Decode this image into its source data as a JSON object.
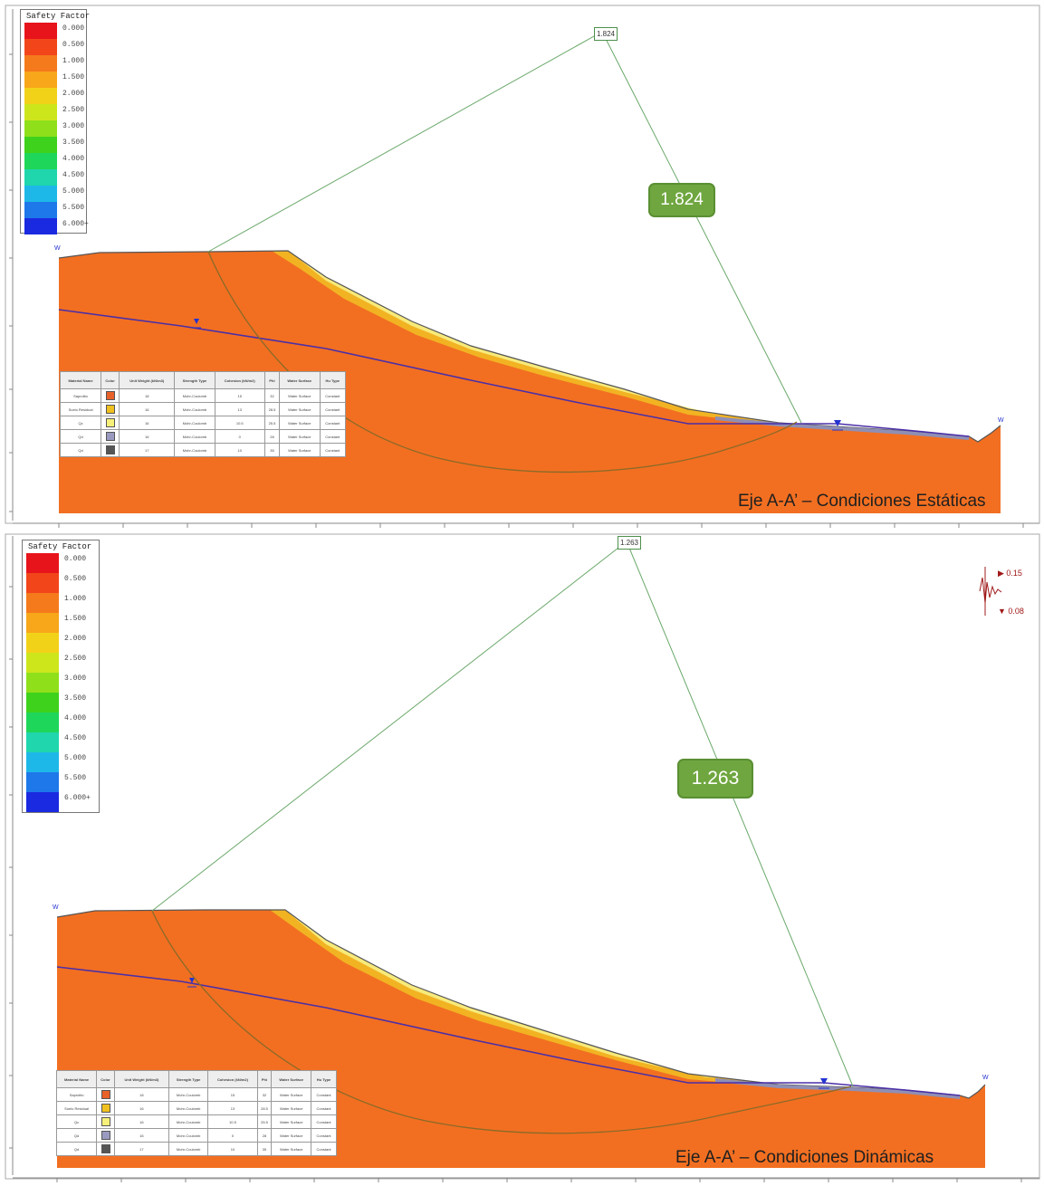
{
  "legend_scale": [
    {
      "label": "0.000",
      "color": "#e8141b"
    },
    {
      "label": "0.500",
      "color": "#f2461a"
    },
    {
      "label": "1.000",
      "color": "#f57a1c"
    },
    {
      "label": "1.500",
      "color": "#f7a719"
    },
    {
      "label": "2.000",
      "color": "#f2d219"
    },
    {
      "label": "2.500",
      "color": "#cde61c"
    },
    {
      "label": "3.000",
      "color": "#8fe01b"
    },
    {
      "label": "3.500",
      "color": "#3ed21c"
    },
    {
      "label": "4.000",
      "color": "#1ed65a"
    },
    {
      "label": "4.500",
      "color": "#1fd6ad"
    },
    {
      "label": "5.000",
      "color": "#1eb8e8"
    },
    {
      "label": "5.500",
      "color": "#1e78ea"
    },
    {
      "label": "6.000+",
      "color": "#1a2ae0"
    }
  ],
  "material_table": {
    "headers": [
      "Material Name",
      "Color",
      "Unit Weight (kN/m3)",
      "Strength Type",
      "Cohesion (kN/m2)",
      "Phi",
      "Water Surface",
      "Hu Type"
    ],
    "rows": [
      [
        "Saprolito",
        "#e8622a",
        "18",
        "Mohr-Coulomb",
        "15",
        "32",
        "Water Surface",
        "Constant"
      ],
      [
        "Suelo Residual",
        "#f0c020",
        "16",
        "Mohr-Coulomb",
        "13",
        "28.5",
        "Water Surface",
        "Constant"
      ],
      [
        "Qc",
        "#f7f07a",
        "16",
        "Mohr-Coulomb",
        "10.5",
        "25.5",
        "Water Surface",
        "Constant"
      ],
      [
        "Qd",
        "#9a9ac0",
        "16",
        "Mohr-Coulomb",
        "0",
        "28",
        "Water Surface",
        "Constant"
      ],
      [
        "Qd",
        "#555555",
        "17",
        "Mohr-Coulomb",
        "10",
        "35",
        "Water Surface",
        "Constant"
      ]
    ]
  },
  "static": {
    "legend_title": "Safety Factor",
    "fs_value": "1.824",
    "fs_tag": "1.824",
    "caption": "Eje A-A’ – Condiciones Estáticas"
  },
  "dynamic": {
    "legend_title": "Safety Factor",
    "fs_value": "1.263",
    "fs_tag": "1.263",
    "caption": "Eje A-A’ – Condiciones Dinámicas",
    "seismic_h": "0.15",
    "seismic_v": "0.08"
  },
  "colors": {
    "slope_fill": "#f26f21",
    "residual": "#f0b020",
    "water_line": "#4b2fa8",
    "slip_circle": "#8a6a28",
    "grid_line": "#6aa86a"
  }
}
